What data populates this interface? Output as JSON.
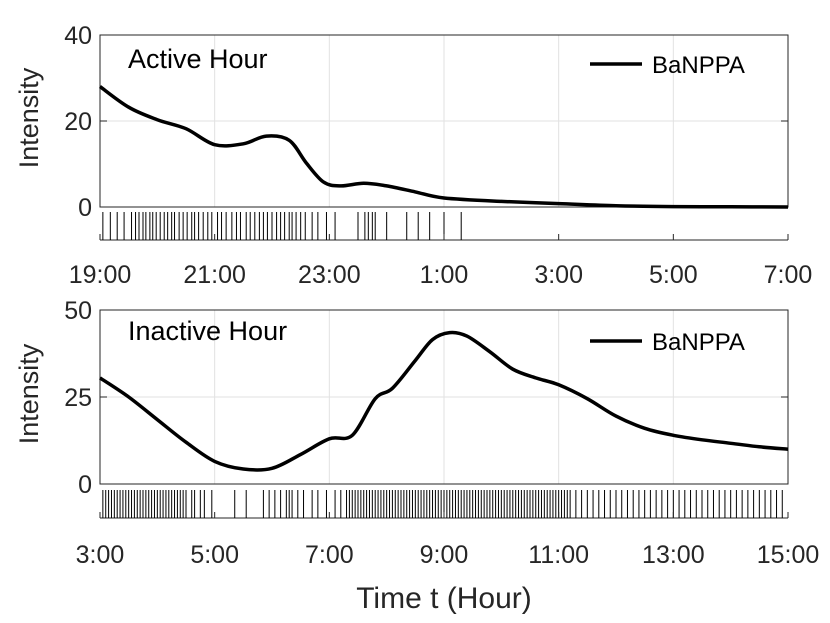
{
  "xlabel": "Time t (Hour)",
  "chart_data": [
    {
      "type": "line",
      "annotation": "Active Hour",
      "ylabel": "Intensity",
      "xlabel": "",
      "legend": "top-right",
      "grid": true,
      "ylim": [
        0,
        40
      ],
      "yticks": [
        0,
        20,
        40
      ],
      "xlim": [
        0,
        12
      ],
      "xtick_values": [
        0,
        2,
        4,
        6,
        8,
        10,
        12
      ],
      "xtick_labels": [
        "19:00",
        "21:00",
        "23:00",
        "1:00",
        "3:00",
        "5:00",
        "7:00"
      ],
      "series": [
        {
          "name": "BaNPPA",
          "color": "#000000",
          "x": [
            0,
            0.5,
            1,
            1.5,
            2,
            2.5,
            2.9,
            3.3,
            3.6,
            3.9,
            4.2,
            4.6,
            5,
            5.5,
            6,
            7,
            8,
            9,
            10,
            11,
            12
          ],
          "y": [
            28,
            23.2,
            20.3,
            18.2,
            14.5,
            14.7,
            16.5,
            15.5,
            10.2,
            5.8,
            4.9,
            5.5,
            4.9,
            3.5,
            2.1,
            1.3,
            0.8,
            0.3,
            0.1,
            0.05,
            0
          ]
        }
      ],
      "events": [
        0.05,
        0.18,
        0.3,
        0.42,
        0.55,
        0.62,
        0.68,
        0.75,
        0.8,
        0.87,
        0.92,
        0.98,
        1.05,
        1.12,
        1.18,
        1.25,
        1.3,
        1.38,
        1.45,
        1.52,
        1.6,
        1.65,
        1.72,
        1.8,
        1.88,
        1.95,
        2.05,
        2.12,
        2.2,
        2.3,
        2.38,
        2.45,
        2.55,
        2.62,
        2.7,
        2.78,
        2.85,
        2.92,
        3.0,
        3.08,
        3.15,
        3.22,
        3.3,
        3.35,
        3.42,
        3.5,
        3.58,
        3.7,
        3.8,
        3.95,
        4.1,
        4.5,
        4.62,
        4.68,
        4.75,
        4.8,
        5.0,
        5.35,
        5.55,
        5.75,
        6.0,
        6.3
      ]
    },
    {
      "type": "line",
      "annotation": "Inactive Hour",
      "ylabel": "Intensity",
      "xlabel": "Time t (Hour)",
      "legend": "top-right",
      "grid": true,
      "ylim": [
        0,
        50
      ],
      "yticks": [
        0,
        25,
        50
      ],
      "xlim": [
        0,
        12
      ],
      "xtick_values": [
        0,
        2,
        4,
        6,
        8,
        10,
        12
      ],
      "xtick_labels": [
        "3:00",
        "5:00",
        "7:00",
        "9:00",
        "11:00",
        "13:00",
        "15:00"
      ],
      "series": [
        {
          "name": "BaNPPA",
          "color": "#000000",
          "x": [
            0,
            0.5,
            1,
            1.5,
            2,
            2.5,
            3,
            3.5,
            4,
            4.4,
            4.8,
            5.1,
            5.5,
            5.8,
            6.1,
            6.4,
            6.8,
            7.2,
            7.6,
            8,
            8.5,
            9,
            9.5,
            10,
            10.5,
            11,
            11.5,
            12
          ],
          "y": [
            30.5,
            25,
            18.5,
            12,
            6.5,
            4.3,
            4.5,
            8.5,
            13,
            14,
            24.5,
            27.5,
            35.5,
            41.5,
            43.5,
            42.5,
            38,
            33,
            30.5,
            28.5,
            24.5,
            19.5,
            16,
            14,
            12.7,
            11.7,
            10.7,
            10
          ]
        }
      ],
      "events": [
        0.05,
        0.1,
        0.15,
        0.2,
        0.25,
        0.3,
        0.35,
        0.4,
        0.45,
        0.5,
        0.55,
        0.6,
        0.65,
        0.7,
        0.75,
        0.8,
        0.85,
        0.9,
        0.95,
        1.0,
        1.05,
        1.1,
        1.15,
        1.2,
        1.25,
        1.3,
        1.35,
        1.4,
        1.45,
        1.5,
        1.6,
        1.65,
        1.75,
        1.82,
        1.95,
        2.35,
        2.55,
        2.85,
        2.95,
        3.05,
        3.15,
        3.25,
        3.3,
        3.35,
        3.45,
        3.55,
        3.7,
        3.8,
        3.95,
        4.1,
        4.2,
        4.3,
        4.35,
        4.4,
        4.45,
        4.5,
        4.55,
        4.6,
        4.65,
        4.7,
        4.75,
        4.8,
        4.85,
        4.9,
        4.95,
        5.0,
        5.05,
        5.1,
        5.15,
        5.2,
        5.25,
        5.3,
        5.35,
        5.4,
        5.45,
        5.5,
        5.55,
        5.6,
        5.65,
        5.7,
        5.75,
        5.8,
        5.85,
        5.9,
        5.95,
        6.0,
        6.05,
        6.1,
        6.15,
        6.2,
        6.25,
        6.3,
        6.35,
        6.4,
        6.45,
        6.5,
        6.55,
        6.6,
        6.65,
        6.7,
        6.75,
        6.8,
        6.85,
        6.9,
        6.95,
        7.0,
        7.05,
        7.1,
        7.15,
        7.2,
        7.25,
        7.3,
        7.35,
        7.4,
        7.45,
        7.5,
        7.55,
        7.6,
        7.65,
        7.7,
        7.75,
        7.8,
        7.85,
        7.9,
        7.95,
        8.0,
        8.05,
        8.1,
        8.15,
        8.2,
        8.3,
        8.4,
        8.5,
        8.6,
        8.7,
        8.8,
        8.9,
        9.0,
        9.1,
        9.2,
        9.3,
        9.4,
        9.5,
        9.6,
        9.7,
        9.8,
        9.9,
        10.0,
        10.1,
        10.2,
        10.3,
        10.4,
        10.5,
        10.6,
        10.7,
        10.8,
        10.9,
        11.0,
        11.1,
        11.2,
        11.3,
        11.4,
        11.5,
        11.6,
        11.7,
        11.8,
        11.9
      ]
    }
  ]
}
